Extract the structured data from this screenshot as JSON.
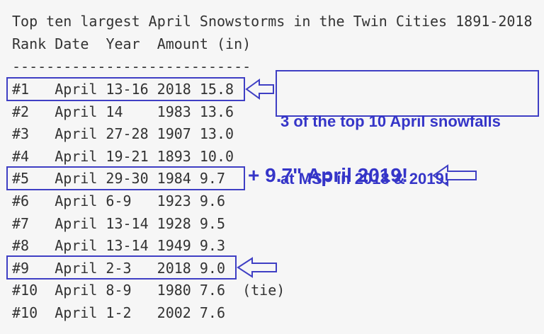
{
  "title": "Top ten largest April Snowstorms in the Twin Cities 1891-2018",
  "header": "Rank Date  Year  Amount (in)",
  "separator": "----------------------------",
  "rows": [
    {
      "rank": "#1",
      "date": "April 13-16",
      "year": "2018",
      "amount": "15.8"
    },
    {
      "rank": "#2",
      "date": "April 14",
      "year": "1983",
      "amount": "13.6"
    },
    {
      "rank": "#3",
      "date": "April 27-28",
      "year": "1907",
      "amount": "13.0"
    },
    {
      "rank": "#4",
      "date": "April 19-21",
      "year": "1893",
      "amount": "10.0"
    },
    {
      "rank": "#5",
      "date": "April 29-30",
      "year": "1984",
      "amount": "9.7"
    },
    {
      "rank": "#6",
      "date": "April 6-9",
      "year": "1923",
      "amount": "9.6"
    },
    {
      "rank": "#7",
      "date": "April 13-14",
      "year": "1928",
      "amount": "9.5"
    },
    {
      "rank": "#8",
      "date": "April 13-14",
      "year": "1949",
      "amount": "9.3"
    },
    {
      "rank": "#9",
      "date": "April 2-3",
      "year": "2018",
      "amount": "9.0"
    },
    {
      "rank": "#10",
      "date": "April 8-9",
      "year": "1980",
      "amount": "7.6",
      "note": "(tie)"
    },
    {
      "rank": "#10",
      "date": "April 1-2",
      "year": "2002",
      "amount": "7.6"
    }
  ],
  "annotations": {
    "callout_line1": "3 of the top 10 April snowfalls",
    "callout_line2": "at MSP in 2018 & 2019!",
    "april_2019": "+ 9.7\" April 2019!"
  }
}
